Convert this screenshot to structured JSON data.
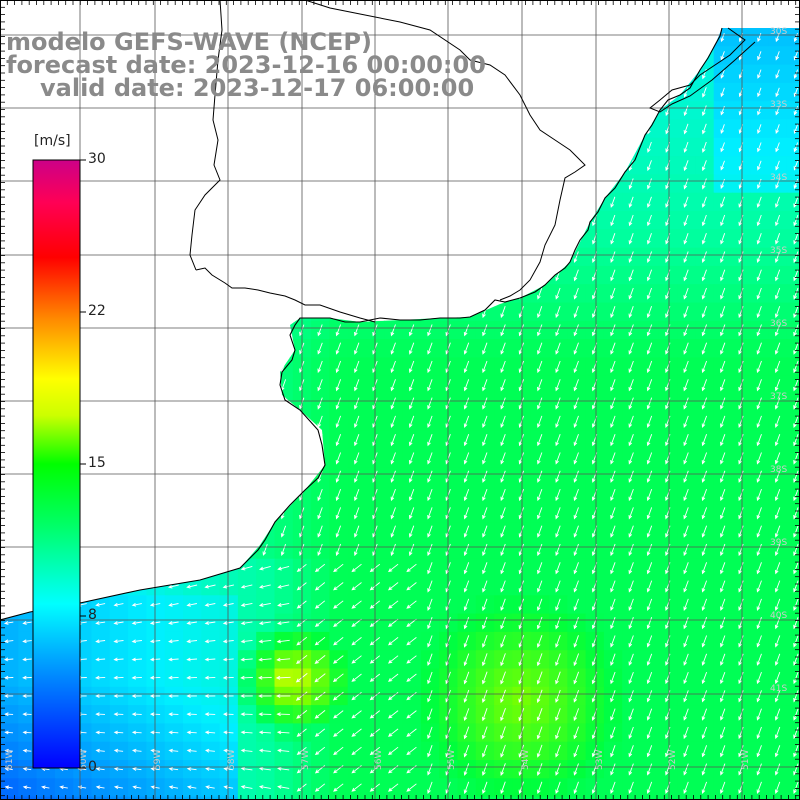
{
  "title": {
    "line1": "modelo GEFS-WAVE (NCEP)",
    "line2": "forecast date: 2023-12-16 00:00:00",
    "line3": "valid date: 2023-12-17 06:00:00"
  },
  "colorbar": {
    "unit": "[m/s]",
    "ticks": [
      "30",
      "22",
      "15",
      "8",
      "0"
    ],
    "stops": [
      "#0000ff",
      "#00aaff",
      "#00ffff",
      "#00ff00",
      "#ffff00",
      "#ff8800",
      "#ff0000",
      "#ff0066",
      "#cc0099"
    ]
  },
  "colors": {
    "land": "#ffffff",
    "grid": "#555555",
    "coast": "#000000",
    "arrow": "#ffffff",
    "title": "#8a8a8a"
  },
  "lat_labels": [
    "30S",
    "33S",
    "34S",
    "35S",
    "36S",
    "37S",
    "38S",
    "39S",
    "40S",
    "41S"
  ],
  "lon_labels": [
    "61W",
    "60W",
    "59W",
    "58W",
    "57W",
    "56W",
    "55W",
    "54W",
    "53W",
    "52W",
    "51W"
  ]
}
